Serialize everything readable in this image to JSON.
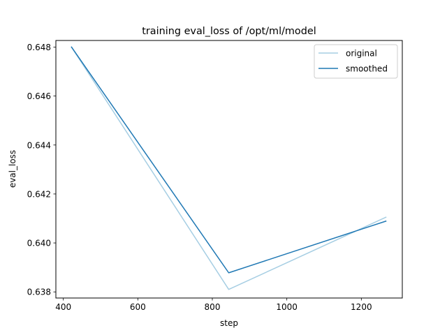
{
  "chart_data": {
    "type": "line",
    "title": "training eval_loss of /opt/ml/model",
    "xlabel": "step",
    "ylabel": "eval_loss",
    "xlim": [
      380,
      1310
    ],
    "ylim": [
      0.63775,
      0.64827
    ],
    "xticks": [
      400,
      600,
      800,
      1000,
      1200
    ],
    "xtick_labels": [
      "400",
      "600",
      "800",
      "1000",
      "1200"
    ],
    "yticks": [
      0.638,
      0.64,
      0.642,
      0.644,
      0.646,
      0.648
    ],
    "ytick_labels": [
      "0.638",
      "0.640",
      "0.642",
      "0.644",
      "0.646",
      "0.648"
    ],
    "grid": false,
    "legend_position": "upper right",
    "series": [
      {
        "name": "original",
        "color": "#a6cee3",
        "x": [
          422,
          844,
          1266
        ],
        "y": [
          0.648,
          0.6381,
          0.64105
        ]
      },
      {
        "name": "smoothed",
        "color": "#1f78b4",
        "x": [
          422,
          844,
          1266
        ],
        "y": [
          0.648,
          0.63878,
          0.64089
        ]
      }
    ]
  }
}
